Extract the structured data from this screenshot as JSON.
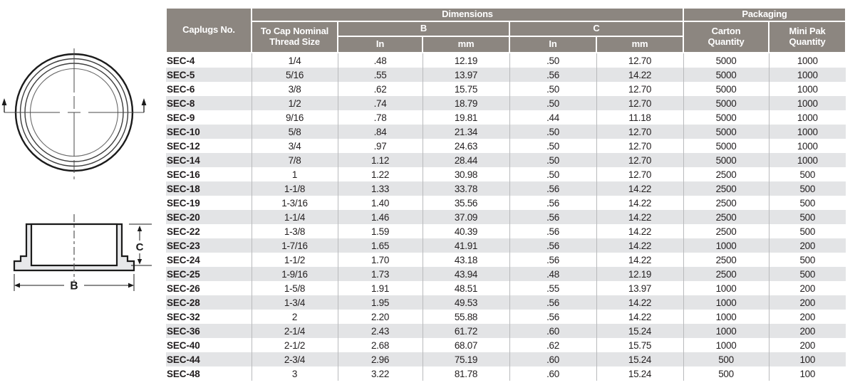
{
  "colors": {
    "header_bg": "#8c8680",
    "row_stripe": "#e3e4e6",
    "row_separator": "#b9babc",
    "text": "#231f20",
    "diagram_fill": "#e7e8ea"
  },
  "diagrams": {
    "dim_b_label": "B",
    "dim_c_label": "C"
  },
  "table": {
    "header": {
      "caplugs_no": "Caplugs No.",
      "thread_size": "To Cap Nominal\nThread Size",
      "dimensions": "Dimensions",
      "packaging": "Packaging",
      "b_label": "B",
      "c_label": "C",
      "in_label": "In",
      "mm_label": "mm",
      "carton_quantity": "Carton\nQuantity",
      "mini_pak_quantity": "Mini Pak\nQuantity"
    },
    "rows": [
      [
        "SEC-4",
        "1/4",
        ".48",
        "12.19",
        ".50",
        "12.70",
        "5000",
        "1000"
      ],
      [
        "SEC-5",
        "5/16",
        ".55",
        "13.97",
        ".56",
        "14.22",
        "5000",
        "1000"
      ],
      [
        "SEC-6",
        "3/8",
        ".62",
        "15.75",
        ".50",
        "12.70",
        "5000",
        "1000"
      ],
      [
        "SEC-8",
        "1/2",
        ".74",
        "18.79",
        ".50",
        "12.70",
        "5000",
        "1000"
      ],
      [
        "SEC-9",
        "9/16",
        ".78",
        "19.81",
        ".44",
        "11.18",
        "5000",
        "1000"
      ],
      [
        "SEC-10",
        "5/8",
        ".84",
        "21.34",
        ".50",
        "12.70",
        "5000",
        "1000"
      ],
      [
        "SEC-12",
        "3/4",
        ".97",
        "24.63",
        ".50",
        "12.70",
        "5000",
        "1000"
      ],
      [
        "SEC-14",
        "7/8",
        "1.12",
        "28.44",
        ".50",
        "12.70",
        "5000",
        "1000"
      ],
      [
        "SEC-16",
        "1",
        "1.22",
        "30.98",
        ".50",
        "12.70",
        "2500",
        "500"
      ],
      [
        "SEC-18",
        "1-1/8",
        "1.33",
        "33.78",
        ".56",
        "14.22",
        "2500",
        "500"
      ],
      [
        "SEC-19",
        "1-3/16",
        "1.40",
        "35.56",
        ".56",
        "14.22",
        "2500",
        "500"
      ],
      [
        "SEC-20",
        "1-1/4",
        "1.46",
        "37.09",
        ".56",
        "14.22",
        "2500",
        "500"
      ],
      [
        "SEC-22",
        "1-3/8",
        "1.59",
        "40.39",
        ".56",
        "14.22",
        "2500",
        "500"
      ],
      [
        "SEC-23",
        "1-7/16",
        "1.65",
        "41.91",
        ".56",
        "14.22",
        "1000",
        "200"
      ],
      [
        "SEC-24",
        "1-1/2",
        "1.70",
        "43.18",
        ".56",
        "14.22",
        "2500",
        "500"
      ],
      [
        "SEC-25",
        "1-9/16",
        "1.73",
        "43.94",
        ".48",
        "12.19",
        "2500",
        "500"
      ],
      [
        "SEC-26",
        "1-5/8",
        "1.91",
        "48.51",
        ".55",
        "13.97",
        "1000",
        "200"
      ],
      [
        "SEC-28",
        "1-3/4",
        "1.95",
        "49.53",
        ".56",
        "14.22",
        "1000",
        "200"
      ],
      [
        "SEC-32",
        "2",
        "2.20",
        "55.88",
        ".56",
        "14.22",
        "1000",
        "200"
      ],
      [
        "SEC-36",
        "2-1/4",
        "2.43",
        "61.72",
        ".60",
        "15.24",
        "1000",
        "200"
      ],
      [
        "SEC-40",
        "2-1/2",
        "2.68",
        "68.07",
        ".62",
        "15.75",
        "1000",
        "200"
      ],
      [
        "SEC-44",
        "2-3/4",
        "2.96",
        "75.19",
        ".60",
        "15.24",
        "500",
        "100"
      ],
      [
        "SEC-48",
        "3",
        "3.22",
        "81.78",
        ".60",
        "15.24",
        "500",
        "100"
      ]
    ]
  }
}
